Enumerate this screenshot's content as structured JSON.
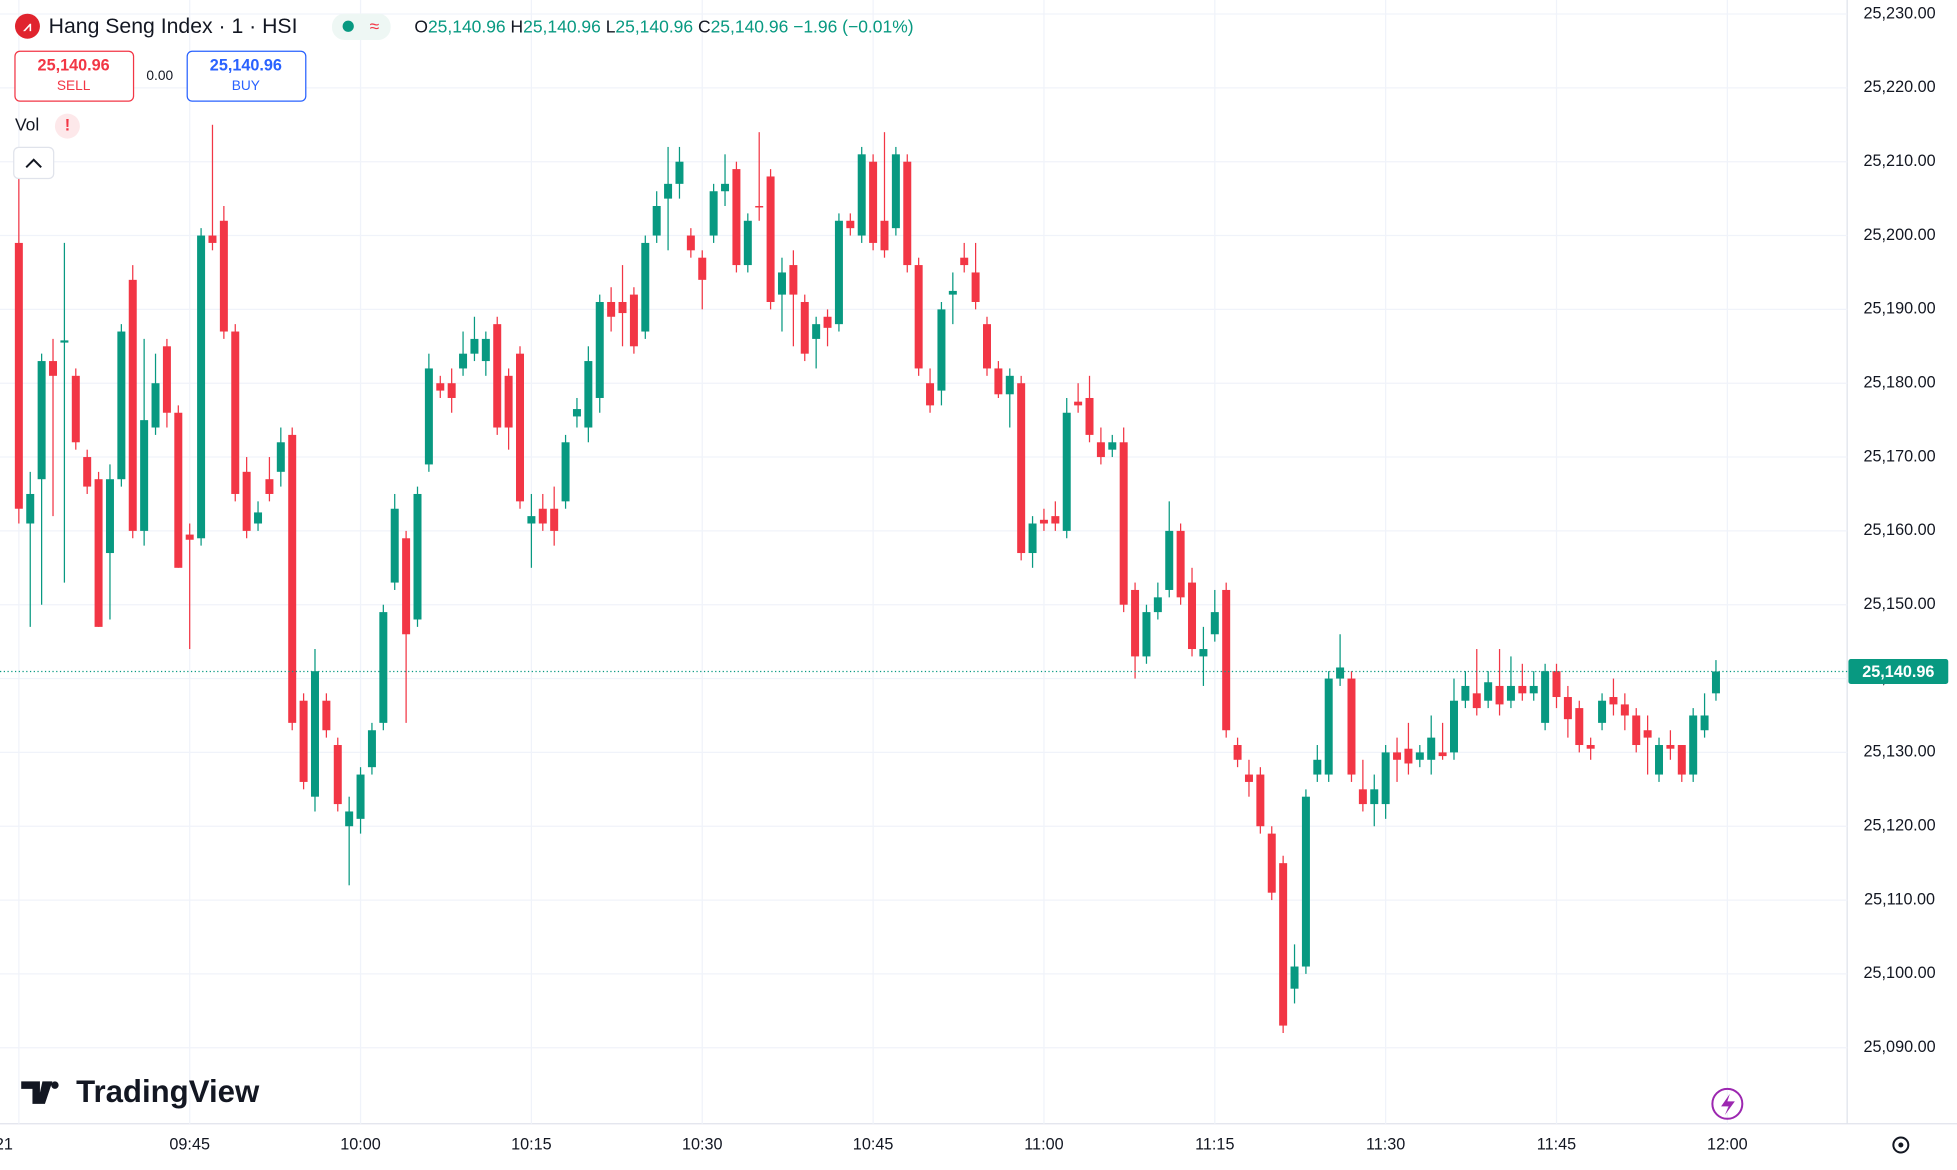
{
  "header": {
    "title": "Hang Seng Index · 1 · HSI",
    "ohlc": {
      "o": {
        "label": "O",
        "value": "25,140.96"
      },
      "h": {
        "label": "H",
        "value": "25,140.96"
      },
      "l": {
        "label": "L",
        "value": "25,140.96"
      },
      "c": {
        "label": "C",
        "value": "25,140.96"
      },
      "change": "−1.96 (−0.01%)"
    }
  },
  "trade": {
    "sell": {
      "price": "25,140.96",
      "label": "SELL"
    },
    "spread": "0.00",
    "buy": {
      "price": "25,140.96",
      "label": "BUY"
    }
  },
  "volume": {
    "label": "Vol",
    "warning": "!"
  },
  "branding": "TradingView",
  "chart_data": {
    "type": "candlestick",
    "up_color": "#089981",
    "down_color": "#f23645",
    "grid": true,
    "categories": [
      "09:30",
      "09:31",
      "09:32",
      "09:33",
      "09:34",
      "09:35",
      "09:36",
      "09:37",
      "09:38",
      "09:39",
      "09:40",
      "09:41",
      "09:42",
      "09:43",
      "09:44",
      "09:45",
      "09:46",
      "09:47",
      "09:48",
      "09:49",
      "09:50",
      "09:51",
      "09:52",
      "09:53",
      "09:54",
      "09:55",
      "09:56",
      "09:57",
      "09:58",
      "09:59",
      "10:00",
      "10:01",
      "10:02",
      "10:03",
      "10:04",
      "10:05",
      "10:06",
      "10:07",
      "10:08",
      "10:09",
      "10:10",
      "10:11",
      "10:12",
      "10:13",
      "10:14",
      "10:15",
      "10:16",
      "10:17",
      "10:18",
      "10:19",
      "10:20",
      "10:21",
      "10:22",
      "10:23",
      "10:24",
      "10:25",
      "10:26",
      "10:27",
      "10:28",
      "10:29",
      "10:30",
      "10:31",
      "10:32",
      "10:33",
      "10:34",
      "10:35",
      "10:36",
      "10:37",
      "10:38",
      "10:39",
      "10:40",
      "10:41",
      "10:42",
      "10:43",
      "10:44",
      "10:45",
      "10:46",
      "10:47",
      "10:48",
      "10:49",
      "10:50",
      "10:51",
      "10:52",
      "10:53",
      "10:54",
      "10:55",
      "10:56",
      "10:57",
      "10:58",
      "10:59",
      "11:00",
      "11:01",
      "11:02",
      "11:03",
      "11:04",
      "11:05",
      "11:06",
      "11:07",
      "11:08",
      "11:09",
      "11:10",
      "11:11",
      "11:12",
      "11:13",
      "11:14",
      "11:15",
      "11:16",
      "11:17",
      "11:18",
      "11:19",
      "11:20",
      "11:21",
      "11:22",
      "11:23",
      "11:24",
      "11:25",
      "11:26",
      "11:27",
      "11:28",
      "11:29",
      "11:30",
      "11:31",
      "11:32",
      "11:33",
      "11:34",
      "11:35",
      "11:36",
      "11:37",
      "11:38",
      "11:39",
      "11:40",
      "11:41",
      "11:42",
      "11:43",
      "11:44",
      "11:45",
      "11:46",
      "11:47",
      "11:48",
      "11:49",
      "11:50",
      "11:51",
      "11:52",
      "11:53",
      "11:54",
      "11:55",
      "11:56",
      "11:57",
      "11:58",
      "11:59"
    ],
    "open": [
      25199,
      25161,
      25167,
      25183,
      25185.5,
      25181,
      25170,
      25167,
      25157,
      25167,
      25194,
      25160,
      25174,
      25185,
      25176,
      25159.5,
      25159,
      25200,
      25202,
      25187,
      25168,
      25161,
      25167,
      25168,
      25173,
      25137,
      25124,
      25137,
      25131,
      25120,
      25121,
      25128,
      25134,
      25153,
      25159,
      25148,
      25169,
      25180,
      25180,
      25182,
      25184,
      25183,
      25188,
      25181,
      25184,
      25161,
      25163,
      25163,
      25164,
      25175.5,
      25174,
      25178,
      25191,
      25191,
      25192,
      25187,
      25200,
      25205,
      25207,
      25200,
      25197,
      25200,
      25206,
      25209,
      25196,
      25204,
      25208,
      25192,
      25196,
      25191,
      25186,
      25189,
      25188,
      25202,
      25200,
      25210,
      25202,
      25201,
      25210,
      25196,
      25180,
      25179,
      25192,
      25197,
      25195,
      25188,
      25182,
      25178.5,
      25180,
      25157,
      25161.5,
      25162,
      25160,
      25177.5,
      25178,
      25172,
      25171,
      25172,
      25152,
      25143,
      25149,
      25152,
      25160,
      25153,
      25143,
      25146,
      25152,
      25131,
      25127,
      25127,
      25119,
      25115,
      25098,
      25101,
      25127,
      25127,
      25140,
      25140,
      25125,
      25123,
      25123,
      25130,
      25130.5,
      25129,
      25129,
      25130,
      25130,
      25137,
      25138,
      25137,
      25139,
      25137,
      25139,
      25138,
      25134,
      25141,
      25137.5,
      25136,
      25131,
      25134,
      25137.5,
      25136.5,
      25135,
      25133,
      25127,
      25131,
      25131,
      25127,
      25133,
      25138
    ],
    "high": [
      25211,
      25168,
      25184,
      25186,
      25199,
      25182,
      25171,
      25168,
      25169,
      25188,
      25196,
      25186,
      25184,
      25186,
      25177,
      25161,
      25201,
      25215,
      25204,
      25188,
      25170,
      25164,
      25170,
      25174,
      25174,
      25138,
      25144,
      25138,
      25132,
      25124,
      25128,
      25134,
      25150,
      25165,
      25160,
      25166,
      25184,
      25181,
      25182,
      25187,
      25189,
      25187,
      25189,
      25182,
      25185,
      25165,
      25165,
      25166,
      25173,
      25178,
      25185,
      25192,
      25193,
      25196,
      25193,
      25200,
      25206,
      25212,
      25212,
      25201,
      25198,
      25207,
      25211,
      25210,
      25203,
      25214,
      25209,
      25197,
      25198,
      25192,
      25189,
      25190,
      25203,
      25203,
      25212,
      25211,
      25214,
      25212,
      25211,
      25197,
      25182,
      25191,
      25195,
      25199,
      25199,
      25189,
      25183,
      25182,
      25181,
      25162,
      25163,
      25164,
      25178,
      25180,
      25181,
      25174,
      25173,
      25174,
      25153,
      25150,
      25153,
      25164,
      25161,
      25155,
      25147,
      25152,
      25153,
      25132,
      25129,
      25128,
      25120,
      25116,
      25104,
      25125,
      25131,
      25141,
      25146,
      25141,
      25129,
      25127,
      25131,
      25132,
      25134,
      25131,
      25135,
      25134,
      25140,
      25141,
      25144,
      25141,
      25144,
      25143,
      25142,
      25141,
      25142,
      25142,
      25139,
      25137,
      25132,
      25138,
      25140,
      25138,
      25136,
      25135,
      25132,
      25133,
      25131,
      25136,
      25138,
      25142.5
    ],
    "low": [
      25161,
      25147,
      25150,
      25162,
      25153,
      25171,
      25165,
      25147,
      25148,
      25166,
      25159,
      25158,
      25173,
      25174,
      25155,
      25144,
      25158,
      25198,
      25186,
      25164,
      25159,
      25160,
      25164,
      25166,
      25133,
      25125,
      25122,
      25132,
      25122,
      25112,
      25119,
      25127,
      25133,
      25152,
      25134,
      25147,
      25168,
      25178,
      25176,
      25181,
      25183,
      25181,
      25173,
      25171,
      25163,
      25155,
      25160,
      25158,
      25163,
      25174,
      25172,
      25176,
      25187,
      25185,
      25184,
      25186,
      25199,
      25198,
      25205,
      25197,
      25190,
      25199,
      25204,
      25195,
      25195,
      25202,
      25190,
      25187,
      25185,
      25183,
      25182,
      25185,
      25187,
      25200,
      25199,
      25198,
      25197,
      25200,
      25195,
      25181,
      25176,
      25177,
      25188,
      25195,
      25190,
      25181,
      25178,
      25174,
      25156,
      25155,
      25160,
      25160,
      25159,
      25176,
      25172,
      25169,
      25170,
      25149,
      25140,
      25142,
      25148,
      25151,
      25150,
      25143,
      25139,
      25145,
      25132,
      25128,
      25124,
      25119,
      25110,
      25092,
      25096,
      25100,
      25126,
      25126,
      25139,
      25126,
      25122,
      25120,
      25121,
      25126,
      25127,
      25128,
      25127,
      25129,
      25129,
      25136,
      25135,
      25136,
      25135,
      25136,
      25137,
      25137,
      25133,
      25136,
      25132,
      25130,
      25129,
      25133,
      25135,
      25133,
      25130,
      25127,
      25126,
      25129,
      25126,
      25126,
      25132,
      25137
    ],
    "close": [
      25163,
      25165,
      25183,
      25181,
      25185.8,
      25172,
      25166,
      25147,
      25167,
      25187,
      25160,
      25175,
      25180,
      25176,
      25155,
      25158.8,
      25200,
      25199,
      25187,
      25165,
      25160,
      25162.5,
      25165,
      25172,
      25134,
      25126,
      25141,
      25133,
      25123,
      25122,
      25127,
      25133,
      25149,
      25163,
      25146,
      25165,
      25182,
      25179,
      25178,
      25184,
      25186,
      25186,
      25174,
      25174,
      25164,
      25162,
      25161,
      25160,
      25172,
      25176.5,
      25183,
      25191,
      25189,
      25189.5,
      25185,
      25199,
      25204,
      25207,
      25210,
      25198,
      25194,
      25206,
      25207,
      25196,
      25202,
      25203.8,
      25191,
      25195,
      25192,
      25184,
      25188,
      25187.5,
      25202,
      25201,
      25211,
      25199,
      25198,
      25211,
      25196,
      25182,
      25177,
      25190,
      25192.5,
      25196,
      25191,
      25182,
      25178.5,
      25181,
      25157,
      25161,
      25161,
      25161,
      25176,
      25177,
      25173,
      25170,
      25172,
      25150,
      25143,
      25149,
      25151,
      25160,
      25151,
      25144,
      25144,
      25149,
      25133,
      25129,
      25126,
      25120,
      25111,
      25093,
      25101,
      25124,
      25129,
      25140,
      25141.5,
      25127,
      25123,
      25125,
      25130,
      25129,
      25128.5,
      25130,
      25132,
      25129.5,
      25137,
      25139,
      25136,
      25139.5,
      25136.5,
      25139,
      25138,
      25139,
      25141,
      25137.5,
      25134.5,
      25131,
      25130.5,
      25137,
      25136.5,
      25135,
      25131,
      25132,
      25131,
      25130.5,
      25127,
      25135,
      25135,
      25140.96
    ],
    "ylim": [
      25079.7,
      25231.9
    ],
    "yticks": [
      {
        "value": 25090,
        "label": "25,090.00"
      },
      {
        "value": 25100,
        "label": "25,100.00"
      },
      {
        "value": 25110,
        "label": "25,110.00"
      },
      {
        "value": 25120,
        "label": "25,120.00"
      },
      {
        "value": 25130,
        "label": "25,130.00"
      },
      {
        "value": 25140,
        "label": "25,140.00"
      },
      {
        "value": 25150,
        "label": "25,150.00"
      },
      {
        "value": 25160,
        "label": "25,160.00"
      },
      {
        "value": 25170,
        "label": "25,170.00"
      },
      {
        "value": 25180,
        "label": "25,180.00"
      },
      {
        "value": 25190,
        "label": "25,190.00"
      },
      {
        "value": 25200,
        "label": "25,200.00"
      },
      {
        "value": 25210,
        "label": "25,210.00"
      },
      {
        "value": 25220,
        "label": "25,220.00"
      },
      {
        "value": 25230,
        "label": "25,230.00"
      }
    ],
    "xticks": [
      {
        "value": "09:30",
        "label": "21"
      },
      "09:45",
      "10:00",
      "10:15",
      "10:30",
      "10:45",
      "11:00",
      "11:15",
      "11:30",
      "11:45",
      "12:00"
    ],
    "last_price": {
      "value": 25140.96,
      "label": "25,140.96"
    }
  }
}
